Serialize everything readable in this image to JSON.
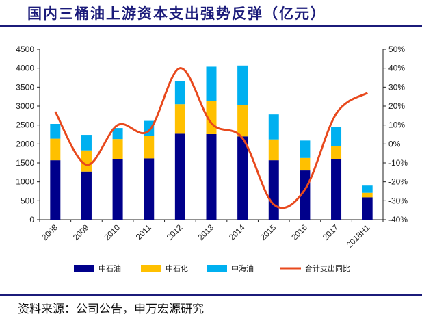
{
  "header": {
    "title": "国内三桶油上游资本支出强势反弹（亿元）"
  },
  "footer": {
    "source": "资料来源：公司公告，申万宏源研究"
  },
  "chart_data": {
    "type": "bar",
    "stacked": true,
    "categories": [
      "2008",
      "2009",
      "2010",
      "2011",
      "2012",
      "2013",
      "2014",
      "2015",
      "2016",
      "2017",
      "2018H1"
    ],
    "series": [
      {
        "name": "中石油",
        "type": "bar",
        "axis": "left",
        "color": "#00008b",
        "values": [
          1570,
          1270,
          1600,
          1620,
          2270,
          2260,
          2200,
          1570,
          1300,
          1600,
          590
        ]
      },
      {
        "name": "中石化",
        "type": "bar",
        "axis": "left",
        "color": "#ffc000",
        "values": [
          570,
          560,
          530,
          600,
          780,
          880,
          820,
          550,
          330,
          350,
          120
        ]
      },
      {
        "name": "中海油",
        "type": "bar",
        "axis": "left",
        "color": "#00b0f0",
        "values": [
          390,
          410,
          290,
          390,
          610,
          900,
          1050,
          660,
          460,
          490,
          190
        ]
      },
      {
        "name": "合计支出同比",
        "type": "line",
        "axis": "right",
        "color": "#e8491d",
        "values": [
          17,
          -11,
          10,
          7,
          40,
          11,
          3,
          -32,
          -24,
          16,
          27
        ]
      }
    ],
    "y_left": {
      "min": 0,
      "max": 4500,
      "step": 500,
      "ticks": [
        "0",
        "500",
        "1000",
        "1500",
        "2000",
        "2500",
        "3000",
        "3500",
        "4000",
        "4500"
      ]
    },
    "y_right": {
      "min": -40,
      "max": 50,
      "step": 10,
      "ticks": [
        "-40%",
        "-30%",
        "-20%",
        "-10%",
        "0%",
        "10%",
        "20%",
        "30%",
        "40%",
        "50%"
      ]
    },
    "grid": false,
    "legend_position": "bottom"
  }
}
